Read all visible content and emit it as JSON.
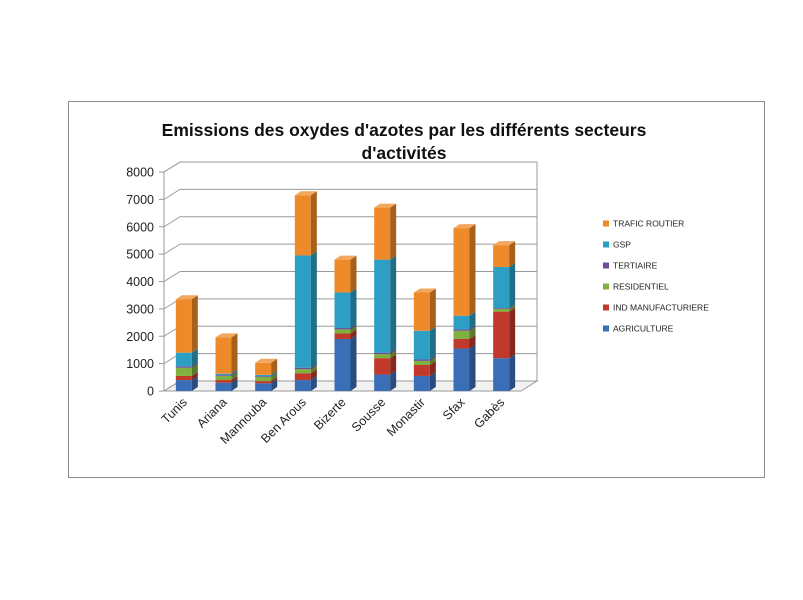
{
  "chart_data": {
    "type": "bar",
    "stacked": true,
    "title": [
      "Emissions des oxydes d'azotes  par les différents secteurs",
      "d'activités"
    ],
    "xlabel": "",
    "ylabel": "",
    "ylim": [
      0,
      8000
    ],
    "yticks": [
      0,
      1000,
      2000,
      3000,
      4000,
      5000,
      6000,
      7000,
      8000
    ],
    "grid": true,
    "legend_position": "right",
    "categories": [
      "Tunis",
      "Ariana",
      "Mannouba",
      "Ben Arous",
      "Bizerte",
      "Sousse",
      "Monastir",
      "Sfax",
      "Gabès"
    ],
    "series": [
      {
        "name": "AGRICULTURE",
        "color": "#3A6EB6",
        "values": [
          400,
          300,
          280,
          400,
          1900,
          600,
          550,
          1550,
          1200
        ]
      },
      {
        "name": "IND MANUFACTURIERE",
        "color": "#C0392B",
        "values": [
          150,
          100,
          80,
          250,
          200,
          600,
          400,
          350,
          1700
        ]
      },
      {
        "name": "RESIDENTIEL",
        "color": "#7FB040",
        "values": [
          300,
          150,
          150,
          150,
          150,
          150,
          150,
          300,
          100
        ]
      },
      {
        "name": "TERTIAIRE",
        "color": "#6E4C9A",
        "values": [
          50,
          30,
          30,
          50,
          50,
          50,
          50,
          50,
          30
        ]
      },
      {
        "name": "GSP",
        "color": "#2E9FC4",
        "values": [
          500,
          50,
          50,
          4100,
          1300,
          3400,
          1050,
          500,
          1500
        ]
      },
      {
        "name": "TRAFIC ROUTIER",
        "color": "#EE8A2A",
        "values": [
          1950,
          1330,
          440,
          2200,
          1200,
          1900,
          1400,
          3200,
          800
        ]
      }
    ],
    "legend_order": [
      "TRAFIC ROUTIER",
      "GSP",
      "TERTIAIRE",
      "RESIDENTIEL",
      "IND MANUFACTURIERE",
      "AGRICULTURE"
    ]
  }
}
